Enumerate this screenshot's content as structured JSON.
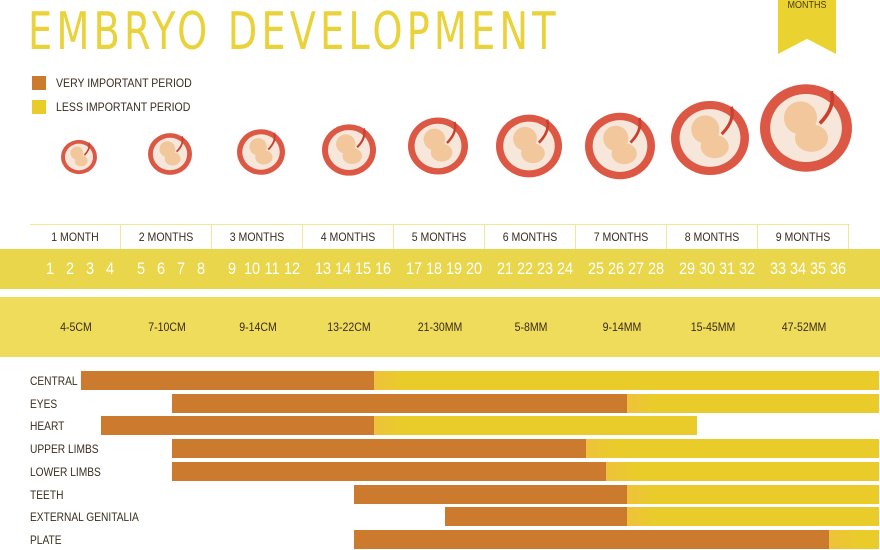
{
  "title": "EMBRYO DEVELOPMENT",
  "ribbon_label": "MONTHS",
  "colors": {
    "very_important": "#cc7a2e",
    "less_important": "#e9cc2a",
    "title": "#e9d23a",
    "embryo_sac": "#dc5844",
    "embryo_body": "#f2c79c"
  },
  "legend": [
    {
      "key": "very_important",
      "label": "VERY IMPORTANT PERIOD",
      "color": "#cc7a2e"
    },
    {
      "key": "less_important",
      "label": "LESS IMPORTANT PERIOD",
      "color": "#e9cc2a"
    }
  ],
  "months": [
    "1 MONTH",
    "2 MONTHS",
    "3 MONTHS",
    "4 MONTHS",
    "5 MONTHS",
    "6 MONTHS",
    "7 MONTHS",
    "8 MONTHS",
    "9 MONTHS"
  ],
  "weeks": [
    "1",
    "2",
    "3",
    "4",
    "5",
    "6",
    "7",
    "8",
    "9",
    "10",
    "11",
    "12",
    "13",
    "14",
    "15",
    "16",
    "17",
    "18",
    "19",
    "20",
    "21",
    "22",
    "23",
    "24",
    "25",
    "26",
    "27",
    "28",
    "29",
    "30",
    "31",
    "32",
    "33",
    "34",
    "35",
    "36"
  ],
  "sizes": [
    "4-5CM",
    "7-10CM",
    "9-14CM",
    "13-22CM",
    "21-30MM",
    "5-8MM",
    "9-14MM",
    "15-45MM",
    "47-52MM"
  ],
  "chart_data": {
    "type": "bar",
    "orientation": "horizontal-timeline",
    "x_unit": "week",
    "xlim": [
      1,
      38
    ],
    "categories": [
      "CENTRAL  NERVOUS SYSTEM",
      "EYES",
      "HEART",
      "UPPER LIMBS",
      "LOWER LIMBS",
      "TEETH",
      "EXTERNAL GENITALIA",
      "PLATE"
    ],
    "rows": [
      {
        "label": "CENTRAL  NERVOUS SYSTEM",
        "very_important": [
          3,
          16
        ],
        "less_important": [
          16,
          38
        ]
      },
      {
        "label": "EYES",
        "very_important": [
          7,
          27
        ],
        "less_important": [
          27,
          38
        ]
      },
      {
        "label": "HEART",
        "very_important": [
          4,
          16
        ],
        "less_important": [
          16,
          30
        ]
      },
      {
        "label": "UPPER LIMBS",
        "very_important": [
          7,
          25
        ],
        "less_important": [
          25,
          38
        ]
      },
      {
        "label": "LOWER LIMBS",
        "very_important": [
          7,
          26
        ],
        "less_important": [
          26,
          38
        ]
      },
      {
        "label": "TEETH",
        "very_important": [
          15,
          27
        ],
        "less_important": [
          27,
          38
        ]
      },
      {
        "label": "EXTERNAL GENITALIA",
        "very_important": [
          19,
          27
        ],
        "less_important": [
          27,
          38
        ]
      },
      {
        "label": "PLATE",
        "very_important": [
          15,
          36
        ],
        "less_important": [
          36,
          38
        ]
      }
    ],
    "legend": [
      "VERY IMPORTANT PERIOD",
      "LESS IMPORTANT PERIOD"
    ],
    "grid": false
  }
}
